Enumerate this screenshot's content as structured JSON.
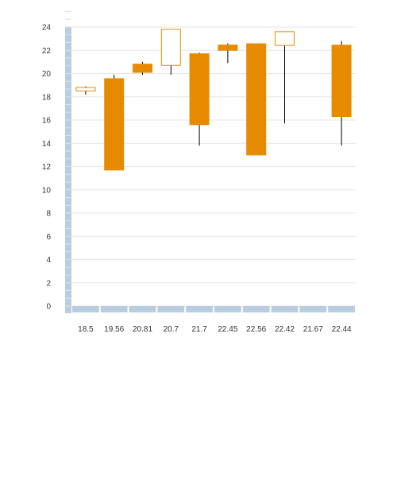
{
  "chart_data": {
    "type": "candlestick",
    "categories": [
      "18.5",
      "19.56",
      "20.81",
      "20.7",
      "21.7",
      "22.45",
      "22.56",
      "22.42",
      "21.67",
      "22.44"
    ],
    "series": [
      {
        "ohlc": [
          {
            "open": 18.5,
            "high": 18.9,
            "low": 18.2,
            "close": 18.8
          },
          {
            "open": 19.56,
            "high": 19.9,
            "low": 11.7,
            "close": 11.7
          },
          {
            "open": 20.81,
            "high": 21.0,
            "low": 19.9,
            "close": 20.1
          },
          {
            "open": 20.7,
            "high": 23.8,
            "low": 19.9,
            "close": 23.8
          },
          {
            "open": 21.7,
            "high": 21.8,
            "low": 13.8,
            "close": 15.6
          },
          {
            "open": 22.45,
            "high": 22.6,
            "low": 20.9,
            "close": 22.0
          },
          {
            "open": 22.56,
            "high": 22.6,
            "low": 13.0,
            "close": 13.0
          },
          {
            "open": 22.42,
            "high": 23.6,
            "low": 15.7,
            "close": 23.6
          },
          null,
          {
            "open": 22.44,
            "high": 22.8,
            "low": 13.8,
            "close": 16.3
          }
        ]
      }
    ],
    "ylim": [
      0,
      24
    ],
    "yticks": [
      0,
      2,
      4,
      6,
      8,
      10,
      12,
      14,
      16,
      18,
      20,
      22,
      24
    ],
    "grid": true,
    "colors": {
      "down": "#e68a00",
      "up_fill": "#ffffff",
      "up_stroke": "#e68a00",
      "wick": "#000000",
      "axis": "#b9cde0"
    }
  }
}
